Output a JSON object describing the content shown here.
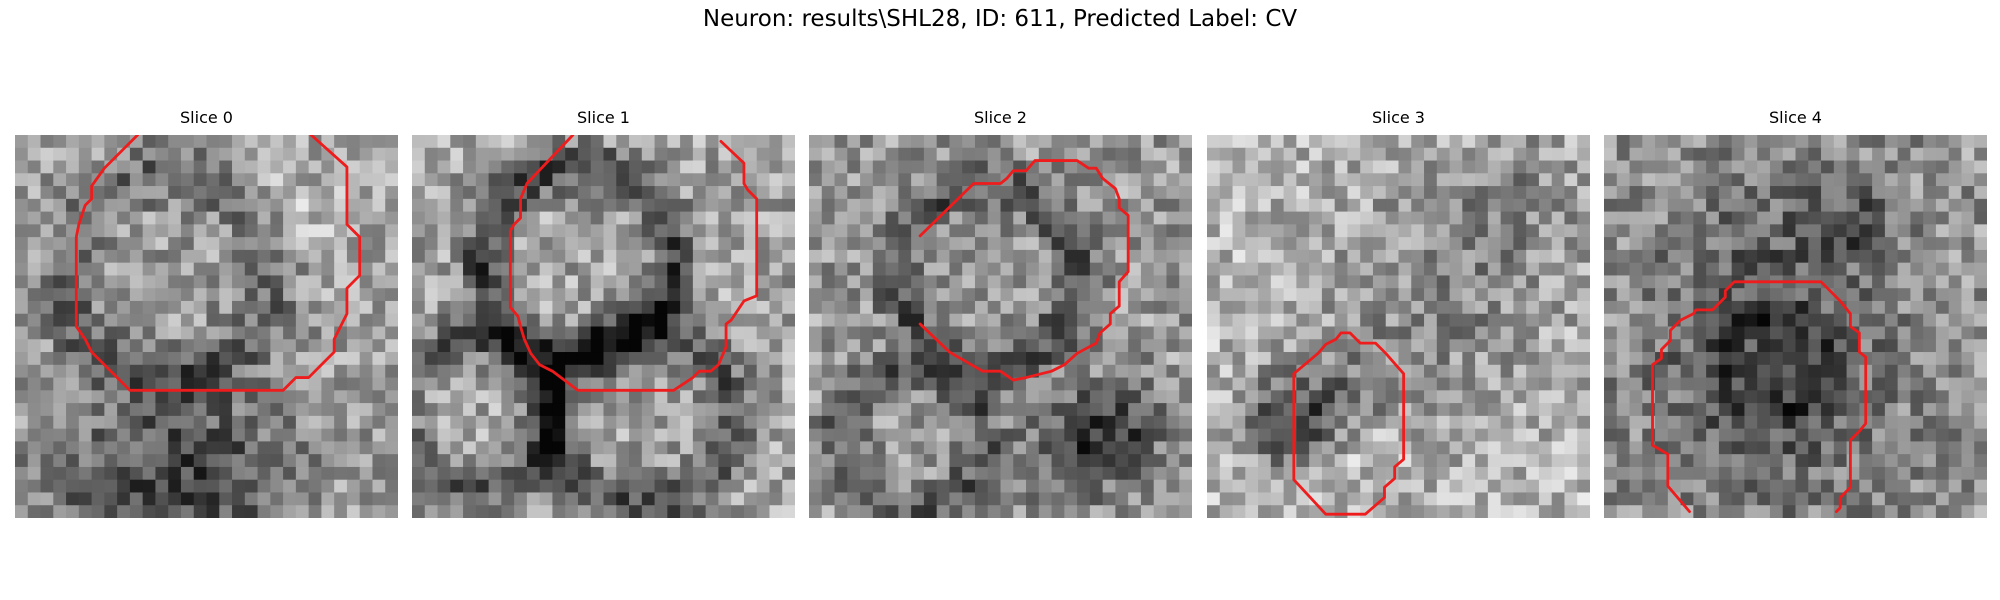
{
  "figure": {
    "title": "Neuron: results\\SHL28, ID: 611, Predicted Label: CV",
    "contour_color": "#ee1c1c"
  },
  "panels": [
    {
      "title": "Slice 0",
      "image": "grayscale noisy micrograph patch with dark ring-shaped structure",
      "contour": "red closed outline"
    },
    {
      "title": "Slice 1",
      "image": "grayscale noisy micrograph patch with dark ring-shaped structure",
      "contour": "red closed outline"
    },
    {
      "title": "Slice 2",
      "image": "grayscale noisy micrograph patch with dark ring-shaped structure",
      "contour": "red closed outline"
    },
    {
      "title": "Slice 3",
      "image": "grayscale noisy micrograph patch with dark ring-shaped structure",
      "contour": "red closed outline"
    },
    {
      "title": "Slice 4",
      "image": "grayscale noisy micrograph patch with dark ring-shaped structure",
      "contour": "red closed outline"
    }
  ]
}
